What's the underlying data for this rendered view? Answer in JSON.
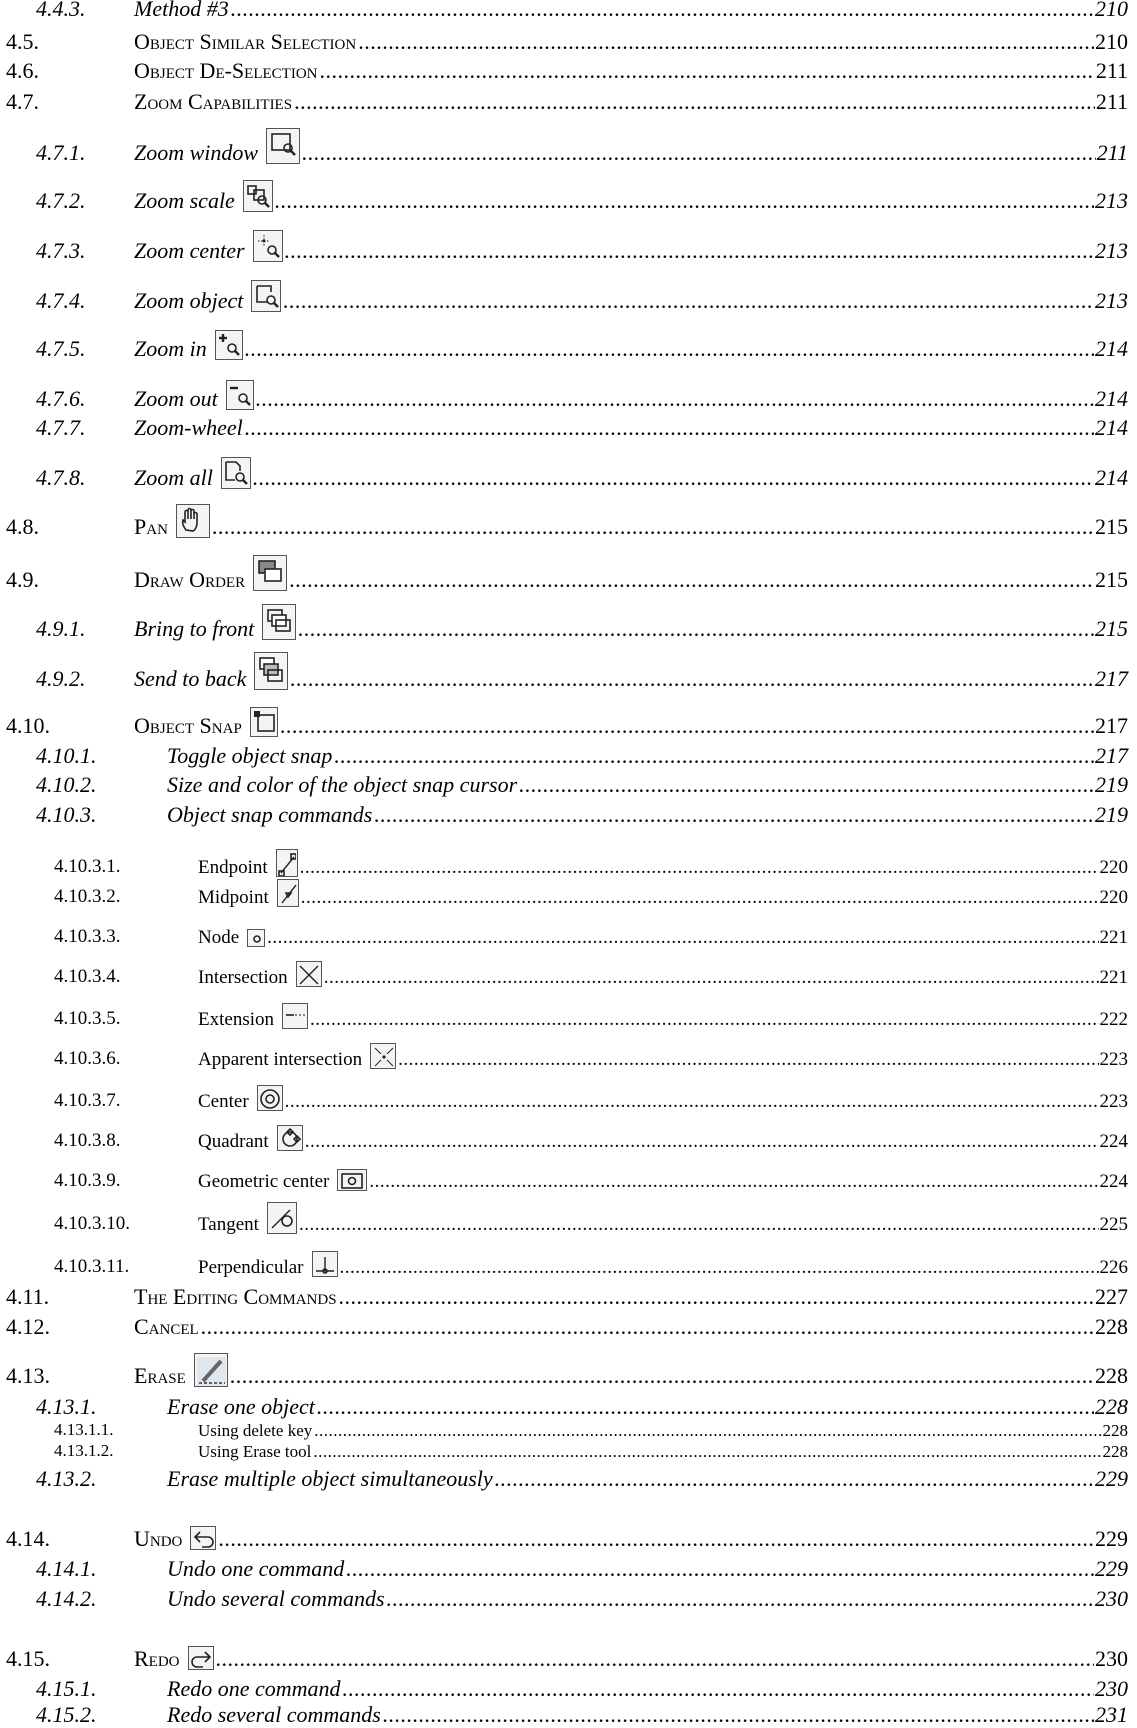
{
  "toc": [
    {
      "num": "4.4.3.",
      "title": "Method #3",
      "page": "210",
      "level": 2,
      "icon": null
    },
    {
      "num": "4.5.",
      "title": "Object Similar Selection",
      "page": "210",
      "level": 1,
      "icon": null
    },
    {
      "num": "4.6.",
      "title": "Object De-Selection",
      "page": "211",
      "level": 1,
      "icon": null
    },
    {
      "num": "4.7.",
      "title": "Zoom Capabilities",
      "page": "211",
      "level": 1,
      "icon": null
    },
    {
      "num": "4.7.1.",
      "title": "Zoom window",
      "page": "211",
      "level": 2,
      "icon": "zoom-window-icon"
    },
    {
      "num": "4.7.2.",
      "title": "Zoom scale",
      "page": "213",
      "level": 2,
      "icon": "zoom-scale-icon"
    },
    {
      "num": "4.7.3.",
      "title": "Zoom center",
      "page": "213",
      "level": 2,
      "icon": "zoom-center-icon"
    },
    {
      "num": "4.7.4.",
      "title": "Zoom object",
      "page": "213",
      "level": 2,
      "icon": "zoom-object-icon"
    },
    {
      "num": "4.7.5.",
      "title": "Zoom in",
      "page": "214",
      "level": 2,
      "icon": "zoom-in-icon"
    },
    {
      "num": "4.7.6.",
      "title": "Zoom out",
      "page": "214",
      "level": 2,
      "icon": "zoom-out-icon"
    },
    {
      "num": "4.7.7.",
      "title": "Zoom-wheel",
      "page": "214",
      "level": 2,
      "icon": null
    },
    {
      "num": "4.7.8.",
      "title": "Zoom all",
      "page": "214",
      "level": 2,
      "icon": "zoom-all-icon"
    },
    {
      "num": "4.8.",
      "title": "Pan",
      "page": "215",
      "level": 1,
      "icon": "pan-hand-icon"
    },
    {
      "num": "4.9.",
      "title": "Draw Order",
      "page": "215",
      "level": 1,
      "icon": "draw-order-icon"
    },
    {
      "num": "4.9.1.",
      "title": "Bring to front",
      "page": "215",
      "level": 2,
      "icon": "bring-to-front-icon"
    },
    {
      "num": "4.9.2.",
      "title": "Send to back",
      "page": "217",
      "level": 2,
      "icon": "send-to-back-icon"
    },
    {
      "num": "4.10.",
      "title": "Object Snap",
      "page": "217",
      "level": 1,
      "icon": "object-snap-icon"
    },
    {
      "num": "4.10.1.",
      "title": "Toggle object snap",
      "page": "217",
      "level": 2.5,
      "icon": null
    },
    {
      "num": "4.10.2.",
      "title": "Size and color of the object snap cursor",
      "page": "219",
      "level": 2.5,
      "icon": null
    },
    {
      "num": "4.10.3.",
      "title": "Object snap commands",
      "page": "219",
      "level": 2.5,
      "icon": null
    },
    {
      "num": "4.10.3.1.",
      "title": "Endpoint",
      "page": "220",
      "level": 3,
      "icon": "endpoint-snap-icon"
    },
    {
      "num": "4.10.3.2.",
      "title": "Midpoint",
      "page": "220",
      "level": 3,
      "icon": "midpoint-snap-icon"
    },
    {
      "num": "4.10.3.3.",
      "title": "Node",
      "page": "221",
      "level": 3,
      "icon": "node-snap-icon"
    },
    {
      "num": "4.10.3.4.",
      "title": "Intersection",
      "page": "221",
      "level": 3,
      "icon": "intersection-snap-icon"
    },
    {
      "num": "4.10.3.5.",
      "title": "Extension",
      "page": "222",
      "level": 3,
      "icon": "extension-snap-icon"
    },
    {
      "num": "4.10.3.6.",
      "title": "Apparent intersection",
      "page": "223",
      "level": 3,
      "icon": "apparent-intersection-snap-icon"
    },
    {
      "num": "4.10.3.7.",
      "title": "Center",
      "page": "223",
      "level": 3,
      "icon": "center-snap-icon"
    },
    {
      "num": "4.10.3.8.",
      "title": "Quadrant",
      "page": "224",
      "level": 3,
      "icon": "quadrant-snap-icon"
    },
    {
      "num": "4.10.3.9.",
      "title": "Geometric center",
      "page": "224",
      "level": 3,
      "icon": "geometric-center-snap-icon"
    },
    {
      "num": "4.10.3.10.",
      "title": "Tangent",
      "page": "225",
      "level": 3,
      "icon": "tangent-snap-icon"
    },
    {
      "num": "4.10.3.11.",
      "title": "Perpendicular",
      "page": "226",
      "level": 3,
      "icon": "perpendicular-snap-icon"
    },
    {
      "num": "4.11.",
      "title": "The Editing Commands",
      "page": "227",
      "level": 1,
      "icon": null
    },
    {
      "num": "4.12.",
      "title": "Cancel",
      "page": "228",
      "level": 1,
      "icon": null
    },
    {
      "num": "4.13.",
      "title": "Erase",
      "page": "228",
      "level": 1,
      "icon": "erase-icon"
    },
    {
      "num": "4.13.1.",
      "title": "Erase one object",
      "page": "228",
      "level": 2.5,
      "icon": null
    },
    {
      "num": "4.13.1.1.",
      "title": "Using delete key",
      "page": "228",
      "level": 3.5,
      "icon": null
    },
    {
      "num": "4.13.1.2.",
      "title": "Using Erase tool",
      "page": "228",
      "level": 3.5,
      "icon": null
    },
    {
      "num": "4.13.2.",
      "title": "Erase multiple object simultaneously",
      "page": "229",
      "level": 2.5,
      "icon": null
    },
    {
      "num": "4.14.",
      "title": "Undo",
      "page": "229",
      "level": 1,
      "icon": "undo-icon"
    },
    {
      "num": "4.14.1.",
      "title": "Undo one command",
      "page": "229",
      "level": 2.5,
      "icon": null
    },
    {
      "num": "4.14.2.",
      "title": "Undo several commands",
      "page": "230",
      "level": 2.5,
      "icon": null
    },
    {
      "num": "4.15.",
      "title": "Redo",
      "page": "230",
      "level": 1,
      "icon": "redo-icon"
    },
    {
      "num": "4.15.1.",
      "title": "Redo one command",
      "page": "230",
      "level": 2.5,
      "icon": null
    },
    {
      "num": "4.15.2.",
      "title": "Redo several commands",
      "page": "231",
      "level": 2.5,
      "icon": null
    }
  ]
}
